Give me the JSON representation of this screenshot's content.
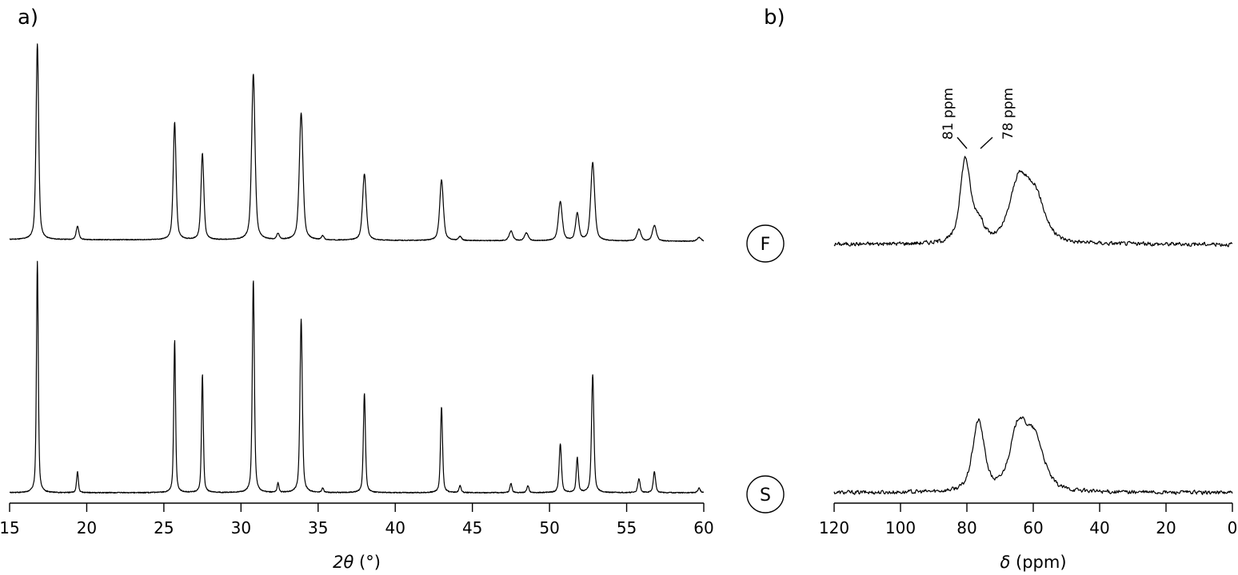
{
  "figure": {
    "panel_a_label": "a)",
    "panel_b_label": "b)",
    "sample_labels": {
      "top": "F",
      "bottom": "S"
    }
  },
  "chart_data": [
    {
      "type": "line",
      "panel": "a",
      "title": "",
      "xlabel_symbol": "2θ",
      "xlabel_unit": "(°)",
      "ylabel": "",
      "xlim": [
        15,
        60
      ],
      "xticks": [
        15,
        20,
        25,
        30,
        35,
        40,
        45,
        50,
        55,
        60
      ],
      "y_relative": true,
      "grid": false,
      "series": [
        {
          "label": "F",
          "baseline": 0.04,
          "peaks": [
            {
              "x": 16.8,
              "h": 1.0,
              "w": 0.1
            },
            {
              "x": 19.4,
              "h": 0.07,
              "w": 0.1
            },
            {
              "x": 25.7,
              "h": 0.6,
              "w": 0.11
            },
            {
              "x": 27.5,
              "h": 0.44,
              "w": 0.11
            },
            {
              "x": 30.8,
              "h": 0.85,
              "w": 0.13
            },
            {
              "x": 32.4,
              "h": 0.03,
              "w": 0.1
            },
            {
              "x": 33.9,
              "h": 0.65,
              "w": 0.14
            },
            {
              "x": 35.3,
              "h": 0.02,
              "w": 0.1
            },
            {
              "x": 38.0,
              "h": 0.34,
              "w": 0.14
            },
            {
              "x": 43.0,
              "h": 0.31,
              "w": 0.14
            },
            {
              "x": 44.2,
              "h": 0.02,
              "w": 0.12
            },
            {
              "x": 47.5,
              "h": 0.05,
              "w": 0.14
            },
            {
              "x": 48.5,
              "h": 0.04,
              "w": 0.14
            },
            {
              "x": 50.7,
              "h": 0.2,
              "w": 0.15
            },
            {
              "x": 51.8,
              "h": 0.14,
              "w": 0.13
            },
            {
              "x": 52.8,
              "h": 0.4,
              "w": 0.15
            },
            {
              "x": 55.8,
              "h": 0.06,
              "w": 0.15
            },
            {
              "x": 56.8,
              "h": 0.08,
              "w": 0.15
            },
            {
              "x": 59.7,
              "h": 0.02,
              "w": 0.15
            }
          ]
        },
        {
          "label": "S",
          "baseline": 0.02,
          "peaks": [
            {
              "x": 16.8,
              "h": 1.0,
              "w": 0.07
            },
            {
              "x": 19.4,
              "h": 0.09,
              "w": 0.07
            },
            {
              "x": 25.7,
              "h": 0.66,
              "w": 0.07
            },
            {
              "x": 27.5,
              "h": 0.51,
              "w": 0.07
            },
            {
              "x": 30.8,
              "h": 0.92,
              "w": 0.08
            },
            {
              "x": 32.4,
              "h": 0.04,
              "w": 0.07
            },
            {
              "x": 33.9,
              "h": 0.75,
              "w": 0.09
            },
            {
              "x": 35.3,
              "h": 0.02,
              "w": 0.07
            },
            {
              "x": 38.0,
              "h": 0.43,
              "w": 0.08
            },
            {
              "x": 43.0,
              "h": 0.37,
              "w": 0.08
            },
            {
              "x": 44.2,
              "h": 0.03,
              "w": 0.08
            },
            {
              "x": 47.5,
              "h": 0.04,
              "w": 0.08
            },
            {
              "x": 48.6,
              "h": 0.03,
              "w": 0.08
            },
            {
              "x": 50.7,
              "h": 0.21,
              "w": 0.09
            },
            {
              "x": 51.8,
              "h": 0.15,
              "w": 0.08
            },
            {
              "x": 52.8,
              "h": 0.51,
              "w": 0.09
            },
            {
              "x": 55.8,
              "h": 0.06,
              "w": 0.09
            },
            {
              "x": 56.8,
              "h": 0.09,
              "w": 0.09
            },
            {
              "x": 59.7,
              "h": 0.02,
              "w": 0.09
            }
          ]
        }
      ]
    },
    {
      "type": "line",
      "panel": "b",
      "title": "",
      "xlabel_symbol": "δ",
      "xlabel_unit": "(ppm)",
      "ylabel": "",
      "xlim": [
        120,
        0
      ],
      "x_reversed": true,
      "xticks": [
        120,
        100,
        80,
        60,
        40,
        20,
        0
      ],
      "y_relative": true,
      "grid": false,
      "annotations": [
        {
          "text": "81 ppm",
          "x": 81,
          "orientation": "vertical"
        },
        {
          "text": "78 ppm",
          "x": 78,
          "orientation": "vertical"
        }
      ],
      "series": [
        {
          "label": "F",
          "noise": 0.025,
          "peaks": [
            {
              "x": 80.5,
              "h": 0.9,
              "w": 1.8
            },
            {
              "x": 76.5,
              "h": 0.22,
              "w": 2.0
            },
            {
              "x": 64.5,
              "h": 0.62,
              "w": 3.2
            },
            {
              "x": 59.5,
              "h": 0.5,
              "w": 3.5
            }
          ]
        },
        {
          "label": "S",
          "noise": 0.025,
          "peaks": [
            {
              "x": 76.5,
              "h": 0.78,
              "w": 2.1
            },
            {
              "x": 64.5,
              "h": 0.68,
              "w": 3.0
            },
            {
              "x": 59.5,
              "h": 0.55,
              "w": 3.3
            }
          ]
        }
      ]
    }
  ]
}
